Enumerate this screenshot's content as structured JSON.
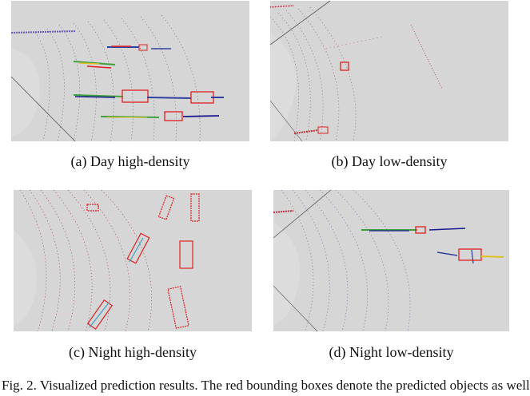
{
  "panels": {
    "a": {
      "caption": "(a)  Day high-density"
    },
    "b": {
      "caption": "(b)  Day low-density"
    },
    "c": {
      "caption": "(c)  Night high-density"
    },
    "d": {
      "caption": "(d)  Night low-density"
    }
  },
  "figure_caption": "Fig. 2.    Visualized prediction results. The red bounding boxes denote the predicted objects as well",
  "colors": {
    "panel_bg": "#d6d6d6",
    "box_red": "#e02020",
    "points_dark": "#5a4a60",
    "points_purple": "#7060a0",
    "points_red": "#a03040"
  }
}
